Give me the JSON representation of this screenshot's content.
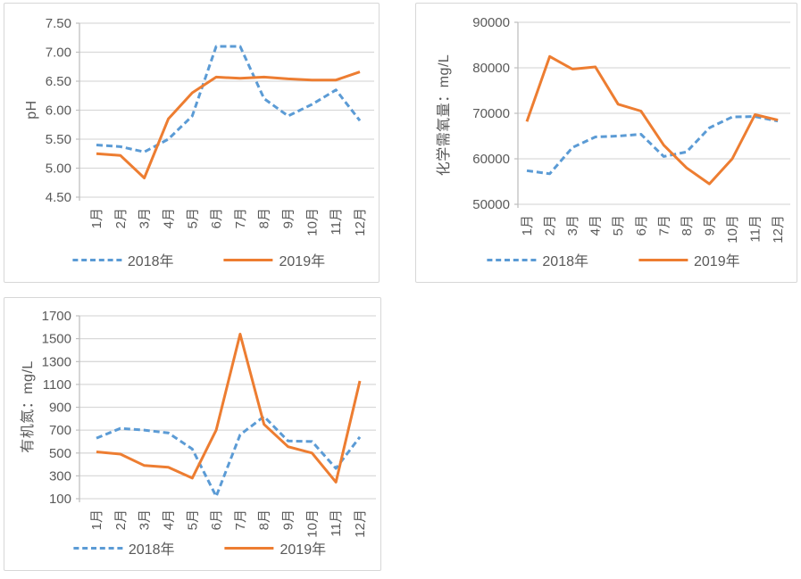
{
  "page": {
    "background": "#ffffff"
  },
  "style": {
    "grid_color": "#d9d9d9",
    "axis_color": "#bfbfbf",
    "text_color": "#595959",
    "series_2018_color": "#5b9bd5",
    "series_2019_color": "#ed7d31"
  },
  "chart_data": [
    {
      "type": "line",
      "title": "",
      "xlabel": "",
      "ylabel": "pH",
      "categories": [
        "1月",
        "2月",
        "3月",
        "4月",
        "5月",
        "6月",
        "7月",
        "8月",
        "9月",
        "10月",
        "11月",
        "12月"
      ],
      "ylim": [
        4.5,
        7.5
      ],
      "ytick_step": 0.5,
      "ytick_labels": [
        "7.50",
        "7.00",
        "6.50",
        "6.00",
        "5.50",
        "5.00",
        "4.50"
      ],
      "grid": true,
      "legend_position": "bottom",
      "series": [
        {
          "name": "2018年",
          "style": "dashed",
          "color": "#5b9bd5",
          "values": [
            5.4,
            5.37,
            5.28,
            5.5,
            5.9,
            7.1,
            7.1,
            6.2,
            5.9,
            6.1,
            6.35,
            5.82
          ]
        },
        {
          "name": "2019年",
          "style": "solid",
          "color": "#ed7d31",
          "values": [
            5.25,
            5.22,
            4.83,
            5.85,
            6.3,
            6.57,
            6.55,
            6.57,
            6.54,
            6.52,
            6.52,
            6.66
          ]
        }
      ]
    },
    {
      "type": "line",
      "title": "",
      "xlabel": "",
      "ylabel": "化学需氧量：mg/L",
      "categories": [
        "1月",
        "2月",
        "3月",
        "4月",
        "5月",
        "6月",
        "7月",
        "8月",
        "9月",
        "10月",
        "11月",
        "12月"
      ],
      "ylim": [
        50000,
        90000
      ],
      "ytick_step": 10000,
      "ytick_labels": [
        "90000",
        "80000",
        "70000",
        "60000",
        "50000"
      ],
      "grid": true,
      "legend_position": "bottom",
      "series": [
        {
          "name": "2018年",
          "style": "dashed",
          "color": "#5b9bd5",
          "values": [
            57400,
            56700,
            62500,
            64800,
            65000,
            65400,
            60500,
            61500,
            66800,
            69200,
            69300,
            68300
          ]
        },
        {
          "name": "2019年",
          "style": "solid",
          "color": "#ed7d31",
          "values": [
            68200,
            82500,
            79700,
            80200,
            72000,
            70500,
            63000,
            58000,
            54500,
            60000,
            69700,
            68500
          ]
        }
      ]
    },
    {
      "type": "line",
      "title": "",
      "xlabel": "",
      "ylabel": "有机氮：mg/L",
      "categories": [
        "1月",
        "2月",
        "3月",
        "4月",
        "5月",
        "6月",
        "7月",
        "8月",
        "9月",
        "10月",
        "11月",
        "12月"
      ],
      "ylim": [
        100,
        1700
      ],
      "ytick_step": 200,
      "ytick_labels": [
        "1700",
        "1500",
        "1300",
        "1100",
        "900",
        "700",
        "500",
        "300",
        "100"
      ],
      "grid": true,
      "legend_position": "bottom",
      "series": [
        {
          "name": "2018年",
          "style": "dashed",
          "color": "#5b9bd5",
          "values": [
            630,
            715,
            700,
            675,
            535,
            120,
            660,
            820,
            605,
            600,
            365,
            640
          ]
        },
        {
          "name": "2019年",
          "style": "solid",
          "color": "#ed7d31",
          "values": [
            510,
            490,
            390,
            375,
            280,
            700,
            1540,
            750,
            555,
            500,
            245,
            1130
          ]
        }
      ]
    }
  ]
}
